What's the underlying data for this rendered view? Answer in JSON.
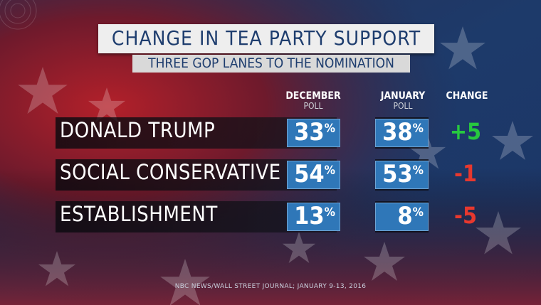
{
  "title": "CHANGE IN TEA PARTY SUPPORT",
  "subtitle": "THREE GOP LANES TO THE NOMINATION",
  "columns": {
    "dec_main": "DECEMBER",
    "dec_sub": "POLL",
    "jan_main": "JANUARY",
    "jan_sub": "POLL",
    "change": "CHANGE"
  },
  "source": "NBC NEWS/WALL STREET JOURNAL; JANUARY 9-13, 2016",
  "colors": {
    "value_box": "#2f77b8",
    "positive": "#27c93f",
    "negative": "#e8382e"
  },
  "chart_data": {
    "type": "table",
    "title": "CHANGE IN TEA PARTY SUPPORT",
    "subtitle": "THREE GOP LANES TO THE NOMINATION",
    "columns": [
      "DECEMBER POLL",
      "JANUARY POLL",
      "CHANGE"
    ],
    "rows": [
      {
        "label": "DONALD TRUMP",
        "december": 33,
        "january": 38,
        "change": "+5",
        "change_sign": "positive"
      },
      {
        "label": "SOCIAL CONSERVATIVE",
        "december": 54,
        "january": 53,
        "change": "-1",
        "change_sign": "negative"
      },
      {
        "label": "ESTABLISHMENT",
        "december": 13,
        "january": 8,
        "change": "-5",
        "change_sign": "negative"
      }
    ],
    "unit": "%"
  }
}
